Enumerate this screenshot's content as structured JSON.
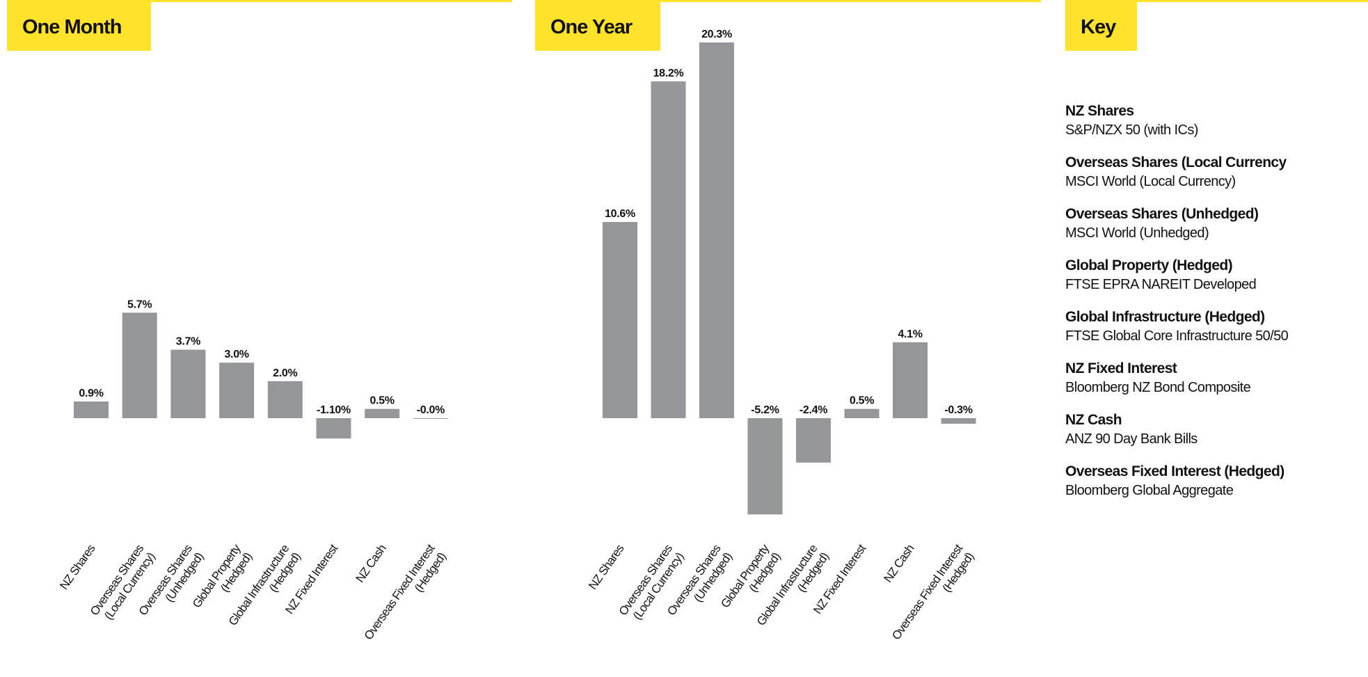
{
  "colors": {
    "accent": "#ffe32b",
    "bar": "#95969a",
    "text": "#111111"
  },
  "panels": {
    "month": {
      "title": "One Month"
    },
    "year": {
      "title": "One Year"
    },
    "key": {
      "title": "Key"
    }
  },
  "chart_data": [
    {
      "type": "bar",
      "title": "One Month",
      "categories": [
        [
          "NZ Shares"
        ],
        [
          "Overseas Shares",
          "(Local Currency)"
        ],
        [
          "Overseas Shares",
          "(Unhedged)"
        ],
        [
          "Global Property",
          "(Hedged)"
        ],
        [
          "Global Infrastructure",
          "(Hedged)"
        ],
        [
          "NZ Fixed Interest"
        ],
        [
          "NZ Cash"
        ],
        [
          "Overseas Fixed Interest",
          "(Hedged)"
        ]
      ],
      "values": [
        0.9,
        5.7,
        3.7,
        3.0,
        2.0,
        -1.1,
        0.5,
        -0.0
      ],
      "labels": [
        "0.9%",
        "5.7%",
        "3.7%",
        "3.0%",
        "2.0%",
        "-1.10%",
        "0.5%",
        "-0.0%"
      ],
      "ylim": [
        -1.1,
        5.7
      ],
      "grid": false
    },
    {
      "type": "bar",
      "title": "One Year",
      "categories": [
        [
          "NZ Shares"
        ],
        [
          "Overseas Shares",
          "(Local Currency)"
        ],
        [
          "Overseas Shares",
          "(Unhedged)"
        ],
        [
          "Global Property",
          "(Hedged)"
        ],
        [
          "Global Infrastructure",
          "(Hedged)"
        ],
        [
          "NZ Fixed Interest"
        ],
        [
          "NZ Cash"
        ],
        [
          "Overseas Fixed Interest",
          "(Hedged)"
        ]
      ],
      "values": [
        10.6,
        18.2,
        20.3,
        -5.2,
        -2.4,
        0.5,
        4.1,
        -0.3
      ],
      "labels": [
        "10.6%",
        "18.2%",
        "20.3%",
        "-5.2%",
        "-2.4%",
        "0.5%",
        "4.1%",
        "-0.3%"
      ],
      "ylim": [
        -5.2,
        20.3
      ],
      "grid": false
    }
  ],
  "key": {
    "items": [
      {
        "name": "NZ Shares",
        "index": "S&P/NZX 50 (with ICs)"
      },
      {
        "name": "Overseas Shares (Local Currency",
        "index": "MSCI World (Local Currency)"
      },
      {
        "name": "Overseas Shares (Unhedged)",
        "index": "MSCI World (Unhedged)"
      },
      {
        "name": "Global Property (Hedged)",
        "index": "FTSE EPRA NAREIT Developed"
      },
      {
        "name": "Global Infrastructure (Hedged)",
        "index": "FTSE Global Core Infrastructure 50/50"
      },
      {
        "name": "NZ Fixed Interest",
        "index": "Bloomberg NZ Bond Composite"
      },
      {
        "name": "NZ Cash",
        "index": "ANZ 90 Day Bank Bills"
      },
      {
        "name": "Overseas Fixed Interest (Hedged)",
        "index": "Bloomberg Global Aggregate"
      }
    ]
  }
}
